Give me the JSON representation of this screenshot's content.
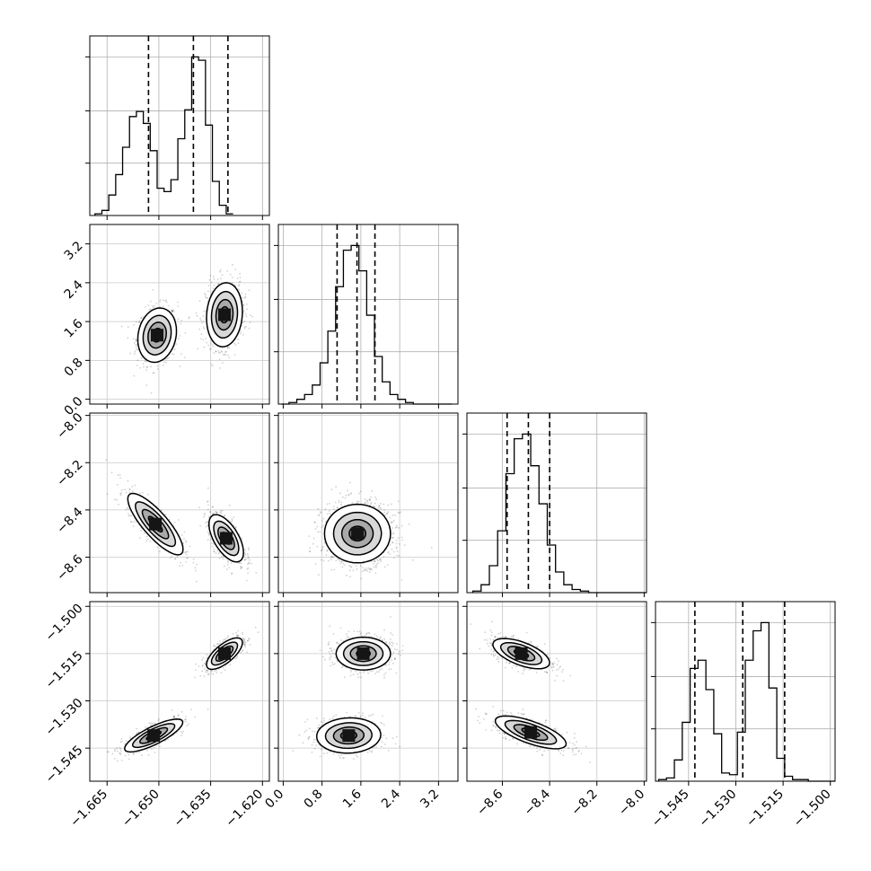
{
  "chart_data": {
    "type": "corner",
    "title": "",
    "grid": true,
    "axes": [
      {
        "range": [
          -1.67,
          -1.618
        ],
        "ticks": [
          -1.665,
          -1.65,
          -1.635,
          -1.62
        ],
        "tick_labels": [
          "−1.665",
          "−1.650",
          "−1.635",
          "−1.620"
        ],
        "quantiles": [
          -1.653,
          -1.64,
          -1.63
        ]
      },
      {
        "range": [
          -0.1,
          3.6
        ],
        "ticks": [
          0.0,
          0.8,
          1.6,
          2.4,
          3.2
        ],
        "tick_labels": [
          "0.0",
          "0.8",
          "1.6",
          "2.4",
          "3.2"
        ],
        "quantiles": [
          1.11,
          1.52,
          1.89
        ]
      },
      {
        "range": [
          -8.75,
          -7.99
        ],
        "ticks": [
          -8.6,
          -8.4,
          -8.2,
          -8.0
        ],
        "tick_labels": [
          "−8.6",
          "−8.4",
          "−8.2",
          "−8.0"
        ],
        "quantiles": [
          -8.58,
          -8.49,
          -8.4
        ]
      },
      {
        "range": [
          -1.5555,
          -1.4985
        ],
        "ticks": [
          -1.545,
          -1.53,
          -1.515,
          -1.5
        ],
        "tick_labels": [
          "−1.545",
          "−1.530",
          "−1.515",
          "−1.500"
        ],
        "quantiles": [
          -1.543,
          -1.5278,
          -1.5145
        ]
      }
    ],
    "histograms": [
      {
        "axis": 0,
        "bin_width": 0.002,
        "bin_start": -1.6685,
        "values": [
          0.01,
          0.03,
          0.12,
          0.24,
          0.4,
          0.58,
          0.61,
          0.54,
          0.38,
          0.16,
          0.14,
          0.21,
          0.45,
          0.62,
          0.93,
          0.91,
          0.53,
          0.2,
          0.06,
          0.01
        ]
      },
      {
        "axis": 1,
        "bin_width": 0.16,
        "bin_start": -0.04,
        "values": [
          0.0,
          0.01,
          0.03,
          0.06,
          0.12,
          0.26,
          0.46,
          0.74,
          0.97,
          1.0,
          0.84,
          0.56,
          0.3,
          0.14,
          0.06,
          0.03,
          0.01,
          0.0,
          0.0,
          0.0,
          0.0,
          0.0
        ]
      },
      {
        "axis": 2,
        "bin_width": 0.035,
        "bin_start": -8.725,
        "values": [
          0.01,
          0.05,
          0.17,
          0.39,
          0.75,
          0.97,
          1.0,
          0.8,
          0.56,
          0.3,
          0.13,
          0.05,
          0.02,
          0.01,
          0.0,
          0.0,
          0.0,
          0.0,
          0.0,
          0.0,
          0.0,
          0.0
        ]
      },
      {
        "axis": 3,
        "bin_width": 0.0025,
        "bin_start": -1.5545,
        "values": [
          0.01,
          0.02,
          0.13,
          0.36,
          0.69,
          0.74,
          0.56,
          0.29,
          0.05,
          0.04,
          0.3,
          0.74,
          0.92,
          0.97,
          0.57,
          0.14,
          0.03,
          0.01,
          0.01,
          0.0,
          0.0,
          0.0,
          0.0
        ]
      }
    ],
    "pairs": [
      {
        "x_axis": 0,
        "y_axis": 1,
        "modes": [
          {
            "mean": [
              -1.6505,
              1.32
            ],
            "sd": [
              0.0028,
              0.28
            ],
            "corr": 0.15,
            "weight": 0.45
          },
          {
            "mean": [
              -1.631,
              1.74
            ],
            "sd": [
              0.0026,
              0.33
            ],
            "corr": 0.1,
            "weight": 0.55
          }
        ]
      },
      {
        "x_axis": 0,
        "y_axis": 2,
        "modes": [
          {
            "mean": [
              -1.651,
              -8.46
            ],
            "sd": [
              0.004,
              0.065
            ],
            "corr": -0.82,
            "weight": 0.45
          },
          {
            "mean": [
              -1.6305,
              -8.52
            ],
            "sd": [
              0.0025,
              0.05
            ],
            "corr": -0.6,
            "weight": 0.55
          }
        ]
      },
      {
        "x_axis": 1,
        "y_axis": 2,
        "modes": [
          {
            "mean": [
              1.53,
              -8.5
            ],
            "sd": [
              0.34,
              0.062
            ],
            "corr": 0.0,
            "weight": 1.0
          }
        ]
      },
      {
        "x_axis": 0,
        "y_axis": 3,
        "modes": [
          {
            "mean": [
              -1.6515,
              -1.541
            ],
            "sd": [
              0.0042,
              0.0026
            ],
            "corr": 0.8,
            "weight": 0.45
          },
          {
            "mean": [
              -1.631,
              -1.515
            ],
            "sd": [
              0.0026,
              0.0025
            ],
            "corr": 0.7,
            "weight": 0.55
          }
        ]
      },
      {
        "x_axis": 1,
        "y_axis": 3,
        "modes": [
          {
            "mean": [
              1.65,
              -1.515
            ],
            "sd": [
              0.28,
              0.0026
            ],
            "corr": 0.0,
            "weight": 0.55
          },
          {
            "mean": [
              1.35,
              -1.541
            ],
            "sd": [
              0.33,
              0.0028
            ],
            "corr": 0.05,
            "weight": 0.45
          }
        ]
      },
      {
        "x_axis": 2,
        "y_axis": 3,
        "modes": [
          {
            "mean": [
              -8.52,
              -1.515
            ],
            "sd": [
              0.06,
              0.0024
            ],
            "corr": -0.6,
            "weight": 0.55
          },
          {
            "mean": [
              -8.48,
              -1.54
            ],
            "sd": [
              0.075,
              0.0026
            ],
            "corr": -0.7,
            "weight": 0.45
          }
        ]
      }
    ]
  }
}
